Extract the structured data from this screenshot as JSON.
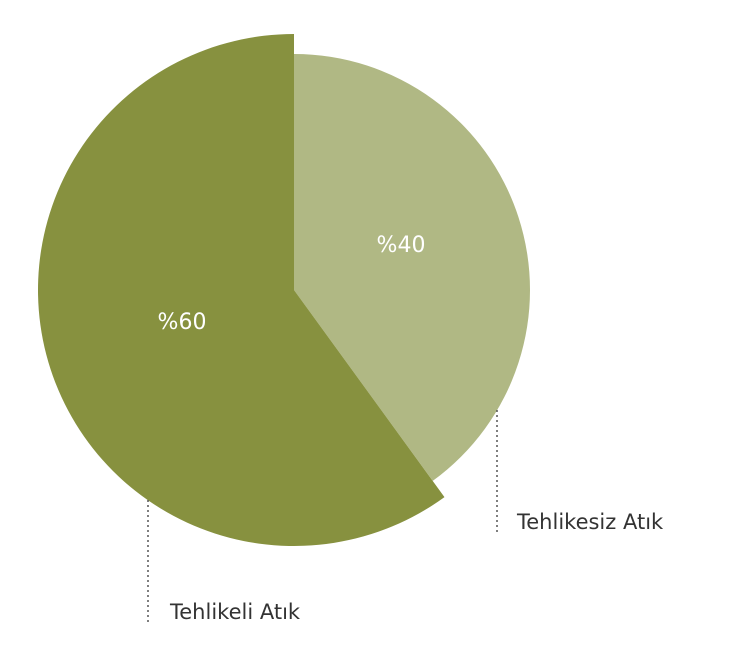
{
  "chart_data": {
    "type": "pie",
    "categories": [
      "Tehlikesiz Atık",
      "Tehlikeli Atık"
    ],
    "values": [
      40,
      60
    ],
    "value_labels": [
      "%40",
      "%60"
    ],
    "colors": [
      "#b0b884",
      "#87913f"
    ]
  }
}
